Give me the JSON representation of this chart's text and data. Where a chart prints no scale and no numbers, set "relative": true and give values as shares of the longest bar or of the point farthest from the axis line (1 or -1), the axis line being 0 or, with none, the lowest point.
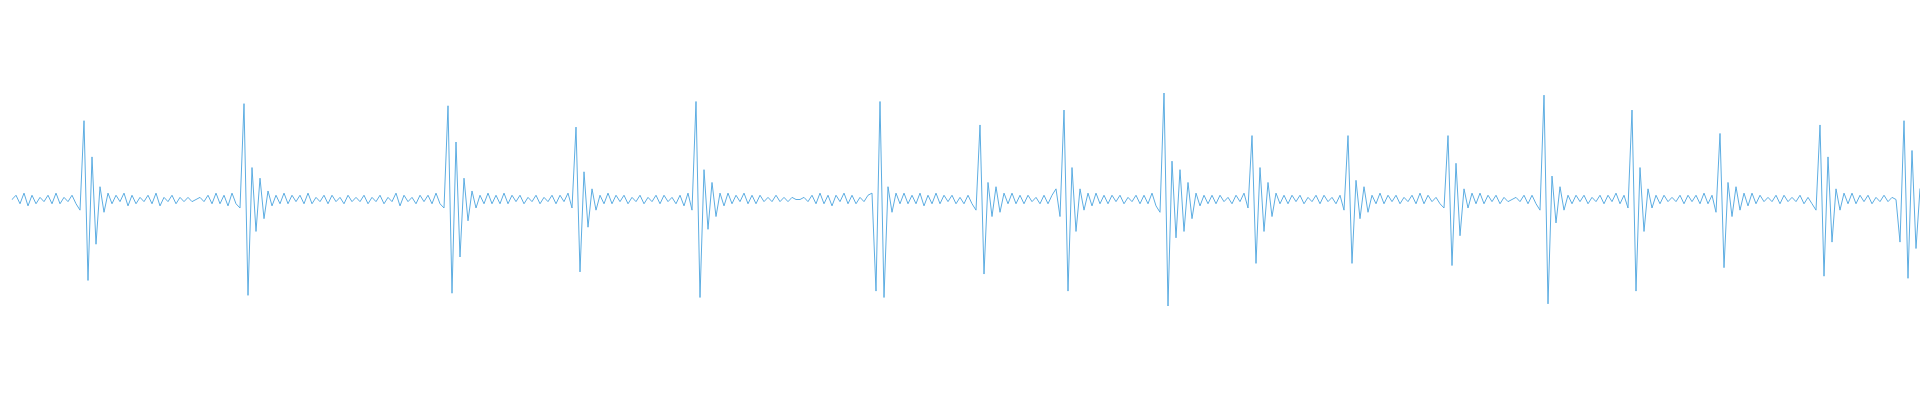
{
  "chart_data": {
    "type": "line",
    "relative": true,
    "color": "#5dade2",
    "categories": [
      null,
      null,
      null,
      null,
      null,
      null,
      null,
      null,
      null,
      null,
      null,
      null,
      null,
      null,
      null,
      null,
      null,
      null,
      null,
      null,
      null,
      null,
      null,
      null,
      null,
      null,
      null,
      null,
      null,
      null,
      null,
      null,
      null,
      null,
      null,
      null,
      null,
      null,
      null,
      null,
      null,
      null,
      null,
      null,
      null,
      null,
      null,
      null,
      null,
      null,
      null,
      null,
      null,
      null,
      null,
      null,
      null,
      null,
      null,
      null,
      null,
      null,
      null,
      null,
      null,
      null,
      null,
      null,
      null,
      null,
      null,
      null,
      null,
      null,
      null,
      null,
      null,
      null,
      null,
      null,
      null,
      null,
      null,
      null,
      null,
      null,
      null,
      null,
      null,
      null,
      null,
      null,
      null,
      null,
      null,
      null,
      null,
      null,
      null,
      null,
      null,
      null,
      null,
      null,
      null,
      null,
      null,
      null,
      null,
      null,
      null,
      null,
      null,
      null,
      null,
      null,
      null,
      null,
      null,
      null,
      null,
      null,
      null,
      null,
      null,
      null,
      null,
      null,
      null,
      null,
      null,
      null,
      null,
      null,
      null,
      null,
      null,
      null,
      null,
      null,
      null,
      null,
      null,
      null,
      null,
      null,
      null,
      null,
      null,
      null,
      null,
      null,
      null,
      null,
      null,
      null,
      null,
      null,
      null,
      null,
      null,
      null,
      null,
      null,
      null,
      null,
      null,
      null,
      null,
      null,
      null,
      null,
      null,
      null,
      null,
      null,
      null,
      null,
      null,
      null,
      null,
      null,
      null,
      null,
      null,
      null,
      null,
      null,
      null,
      null,
      null,
      null,
      null,
      null,
      null,
      null,
      null,
      null,
      null,
      null,
      null,
      null,
      null,
      null,
      null,
      null,
      null,
      null,
      null,
      null,
      null,
      null,
      null,
      null,
      null,
      null,
      null,
      null,
      null,
      null,
      null,
      null,
      null,
      null,
      null,
      null,
      null,
      null,
      null,
      null,
      null,
      null,
      null,
      null,
      null,
      null,
      null,
      null,
      null,
      null,
      null,
      null,
      null,
      null,
      null,
      null,
      null,
      null,
      null,
      null,
      null,
      null,
      null,
      null,
      null,
      null,
      null,
      null,
      null,
      null,
      null,
      null,
      null,
      null,
      null,
      null,
      null,
      null,
      null,
      null,
      null,
      null,
      null,
      null,
      null,
      null,
      null,
      null,
      null,
      null,
      null,
      null,
      null,
      null,
      null,
      null,
      null,
      null,
      null,
      null,
      null,
      null,
      null,
      null,
      null,
      null,
      null,
      null,
      null,
      null,
      null,
      null,
      null,
      null,
      null,
      null,
      null,
      null,
      null,
      null,
      null,
      null,
      null,
      null,
      null,
      null,
      null,
      null,
      null,
      null,
      null,
      null,
      null,
      null,
      null,
      null,
      null,
      null,
      null,
      null,
      null,
      null,
      null,
      null,
      null,
      null,
      null,
      null,
      null,
      null,
      null,
      null,
      null,
      null,
      null,
      null,
      null,
      null,
      null,
      null,
      null,
      null,
      null,
      null,
      null,
      null,
      null,
      null,
      null,
      null,
      null,
      null,
      null,
      null,
      null,
      null,
      null,
      null,
      null,
      null,
      null,
      null,
      null,
      null,
      null,
      null,
      null,
      null,
      null,
      null,
      null,
      null,
      null,
      null,
      null,
      null,
      null,
      null,
      null,
      null,
      null,
      null,
      null,
      null,
      null,
      null,
      null,
      null,
      null,
      null,
      null,
      null,
      null,
      null,
      null,
      null,
      null,
      null,
      null,
      null,
      null,
      null,
      null,
      null,
      null,
      null,
      null,
      null,
      null,
      null,
      null,
      null,
      null,
      null,
      null,
      null,
      null,
      null,
      null,
      null,
      null,
      null,
      null,
      null,
      null,
      null,
      null,
      null,
      null,
      null,
      null,
      null,
      null,
      null,
      null,
      null,
      null,
      null,
      null,
      null,
      null,
      null,
      null,
      null,
      null,
      null,
      null,
      null,
      null,
      null,
      null,
      null,
      null,
      null,
      null,
      null,
      null,
      null,
      null,
      null,
      null,
      null,
      null,
      null,
      null,
      null,
      null,
      null
    ],
    "values": [
      0.5,
      0.52,
      0.48,
      0.53,
      0.47,
      0.52,
      0.48,
      0.51,
      0.49,
      0.52,
      0.48,
      0.53,
      0.48,
      0.51,
      0.49,
      0.52,
      0.48,
      0.45,
      0.87,
      0.12,
      0.7,
      0.29,
      0.56,
      0.44,
      0.53,
      0.48,
      0.52,
      0.49,
      0.53,
      0.47,
      0.52,
      0.48,
      0.51,
      0.49,
      0.52,
      0.48,
      0.53,
      0.47,
      0.51,
      0.49,
      0.52,
      0.48,
      0.51,
      0.49,
      0.51,
      0.49,
      0.5,
      0.51,
      0.49,
      0.52,
      0.48,
      0.53,
      0.48,
      0.52,
      0.47,
      0.53,
      0.48,
      0.46,
      0.95,
      0.05,
      0.65,
      0.35,
      0.6,
      0.41,
      0.54,
      0.47,
      0.52,
      0.48,
      0.53,
      0.48,
      0.52,
      0.49,
      0.52,
      0.48,
      0.53,
      0.48,
      0.51,
      0.49,
      0.52,
      0.48,
      0.52,
      0.49,
      0.51,
      0.48,
      0.52,
      0.49,
      0.51,
      0.49,
      0.52,
      0.48,
      0.51,
      0.49,
      0.52,
      0.48,
      0.51,
      0.49,
      0.53,
      0.47,
      0.52,
      0.49,
      0.51,
      0.48,
      0.52,
      0.49,
      0.52,
      0.48,
      0.53,
      0.48,
      0.46,
      0.94,
      0.06,
      0.77,
      0.23,
      0.6,
      0.4,
      0.54,
      0.46,
      0.52,
      0.48,
      0.53,
      0.48,
      0.52,
      0.48,
      0.53,
      0.48,
      0.52,
      0.49,
      0.52,
      0.48,
      0.51,
      0.49,
      0.52,
      0.48,
      0.51,
      0.49,
      0.52,
      0.48,
      0.52,
      0.49,
      0.53,
      0.46,
      0.84,
      0.16,
      0.63,
      0.37,
      0.55,
      0.45,
      0.52,
      0.48,
      0.53,
      0.48,
      0.52,
      0.49,
      0.52,
      0.48,
      0.51,
      0.49,
      0.52,
      0.48,
      0.51,
      0.49,
      0.52,
      0.48,
      0.52,
      0.49,
      0.51,
      0.48,
      0.52,
      0.47,
      0.53,
      0.45,
      0.96,
      0.04,
      0.64,
      0.36,
      0.58,
      0.42,
      0.53,
      0.47,
      0.53,
      0.48,
      0.52,
      0.49,
      0.53,
      0.48,
      0.52,
      0.48,
      0.52,
      0.49,
      0.51,
      0.49,
      0.52,
      0.49,
      0.51,
      0.49,
      0.51,
      0.5,
      0.5,
      0.51,
      0.49,
      0.52,
      0.48,
      0.53,
      0.48,
      0.52,
      0.47,
      0.52,
      0.49,
      0.53,
      0.48,
      0.52,
      0.48,
      0.51,
      0.49,
      0.52,
      0.53,
      0.07,
      0.96,
      0.04,
      0.56,
      0.44,
      0.53,
      0.48,
      0.53,
      0.48,
      0.52,
      0.48,
      0.53,
      0.47,
      0.52,
      0.48,
      0.53,
      0.48,
      0.52,
      0.49,
      0.52,
      0.48,
      0.51,
      0.48,
      0.52,
      0.48,
      0.45,
      0.85,
      0.15,
      0.58,
      0.42,
      0.56,
      0.44,
      0.53,
      0.48,
      0.53,
      0.48,
      0.52,
      0.48,
      0.52,
      0.49,
      0.51,
      0.48,
      0.52,
      0.48,
      0.52,
      0.55,
      0.42,
      0.92,
      0.07,
      0.65,
      0.35,
      0.55,
      0.45,
      0.53,
      0.47,
      0.53,
      0.48,
      0.52,
      0.48,
      0.52,
      0.49,
      0.52,
      0.48,
      0.51,
      0.49,
      0.52,
      0.48,
      0.52,
      0.48,
      0.53,
      0.47,
      0.44,
      1.0,
      0.0,
      0.68,
      0.32,
      0.64,
      0.35,
      0.58,
      0.41,
      0.53,
      0.47,
      0.52,
      0.48,
      0.52,
      0.48,
      0.52,
      0.49,
      0.51,
      0.48,
      0.52,
      0.49,
      0.53,
      0.46,
      0.8,
      0.2,
      0.65,
      0.35,
      0.58,
      0.42,
      0.53,
      0.48,
      0.52,
      0.48,
      0.52,
      0.49,
      0.52,
      0.48,
      0.51,
      0.49,
      0.52,
      0.48,
      0.52,
      0.49,
      0.51,
      0.48,
      0.52,
      0.45,
      0.8,
      0.2,
      0.59,
      0.41,
      0.56,
      0.44,
      0.52,
      0.48,
      0.53,
      0.48,
      0.52,
      0.49,
      0.52,
      0.48,
      0.51,
      0.49,
      0.52,
      0.48,
      0.53,
      0.48,
      0.52,
      0.49,
      0.51,
      0.48,
      0.46,
      0.8,
      0.19,
      0.67,
      0.33,
      0.55,
      0.46,
      0.53,
      0.48,
      0.53,
      0.48,
      0.52,
      0.49,
      0.52,
      0.48,
      0.51,
      0.49,
      0.5,
      0.51,
      0.49,
      0.52,
      0.48,
      0.52,
      0.48,
      0.45,
      0.99,
      0.01,
      0.61,
      0.39,
      0.56,
      0.45,
      0.52,
      0.48,
      0.52,
      0.49,
      0.52,
      0.48,
      0.51,
      0.49,
      0.52,
      0.48,
      0.52,
      0.49,
      0.53,
      0.48,
      0.52,
      0.46,
      0.92,
      0.07,
      0.65,
      0.35,
      0.55,
      0.46,
      0.52,
      0.48,
      0.52,
      0.49,
      0.51,
      0.49,
      0.52,
      0.48,
      0.52,
      0.49,
      0.52,
      0.48,
      0.53,
      0.48,
      0.52,
      0.44,
      0.81,
      0.18,
      0.58,
      0.42,
      0.56,
      0.45,
      0.53,
      0.47,
      0.53,
      0.48,
      0.52,
      0.49,
      0.51,
      0.49,
      0.52,
      0.48,
      0.52,
      0.49,
      0.51,
      0.49,
      0.52,
      0.48,
      0.51,
      0.48,
      0.45,
      0.85,
      0.14,
      0.7,
      0.3,
      0.55,
      0.45,
      0.53,
      0.48,
      0.53,
      0.48,
      0.52,
      0.49,
      0.52,
      0.48,
      0.51,
      0.49,
      0.52,
      0.49,
      0.51,
      0.5,
      0.3,
      0.87,
      0.13,
      0.73,
      0.27,
      0.55
    ]
  }
}
